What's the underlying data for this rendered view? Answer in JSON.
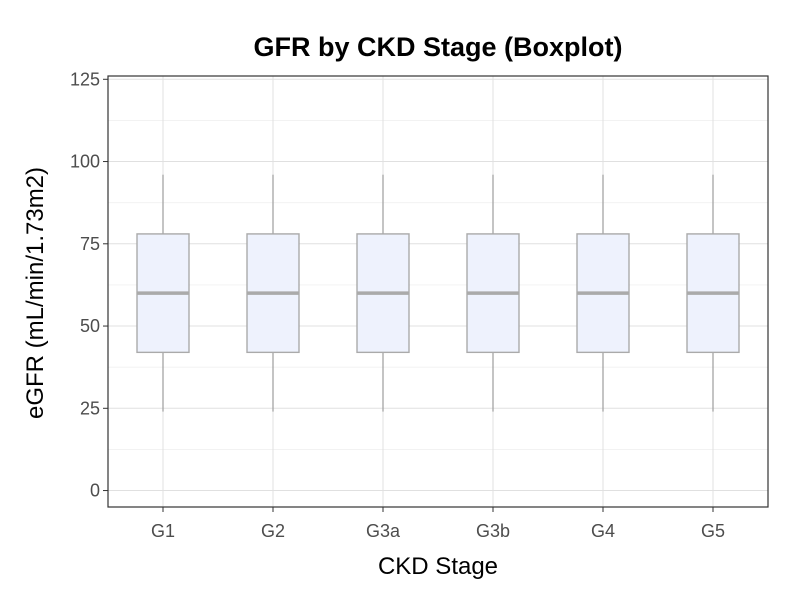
{
  "chart_data": {
    "type": "boxplot",
    "title": "GFR by CKD Stage (Boxplot)",
    "xlabel": "CKD Stage",
    "ylabel": "eGFR (mL/min/1.73m2)",
    "categories": [
      "G1",
      "G2",
      "G3a",
      "G3b",
      "G4",
      "G5"
    ],
    "boxes": [
      {
        "category": "G1",
        "min": 24,
        "q1": 42,
        "median": 60,
        "q3": 78,
        "max": 96
      },
      {
        "category": "G2",
        "min": 24,
        "q1": 42,
        "median": 60,
        "q3": 78,
        "max": 96
      },
      {
        "category": "G3a",
        "min": 24,
        "q1": 42,
        "median": 60,
        "q3": 78,
        "max": 96
      },
      {
        "category": "G3b",
        "min": 24,
        "q1": 42,
        "median": 60,
        "q3": 78,
        "max": 96
      },
      {
        "category": "G4",
        "min": 24,
        "q1": 42,
        "median": 60,
        "q3": 78,
        "max": 96
      },
      {
        "category": "G5",
        "min": 24,
        "q1": 42,
        "median": 60,
        "q3": 78,
        "max": 96
      }
    ],
    "ylim": [
      -5,
      126
    ],
    "yticks": [
      0,
      25,
      50,
      75,
      100,
      125
    ],
    "grid": true,
    "colors": {
      "box_fill": "#eef2fd",
      "box_stroke": "#aaaaaa",
      "median": "#aaaaaa",
      "whisker": "#aaaaaa"
    }
  }
}
